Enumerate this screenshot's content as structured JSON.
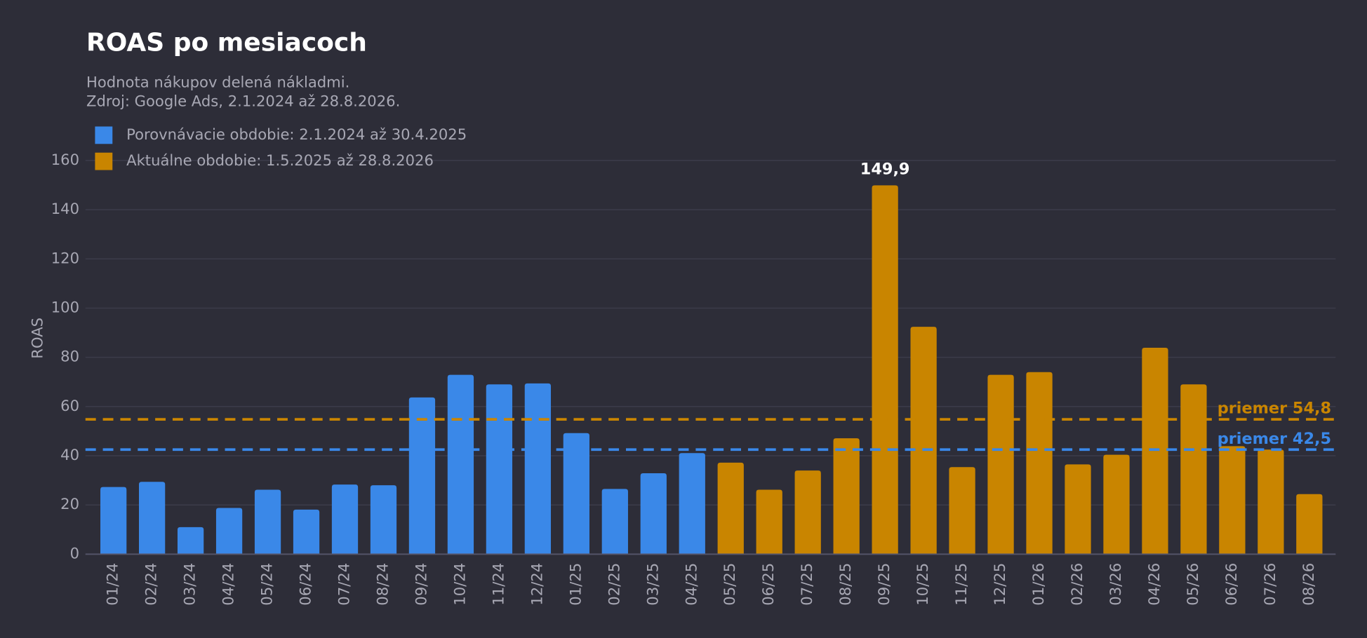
{
  "chart_data": {
    "type": "bar",
    "title": "ROAS po mesiacoch",
    "subtitle": [
      "Hodnota nákupov delená nákladmi.",
      "Zdroj: Google Ads, 2.1.2024 až 28.8.2026."
    ],
    "y_label": "ROAS",
    "categories": [
      "01/24",
      "02/24",
      "03/24",
      "04/24",
      "05/24",
      "06/24",
      "07/24",
      "08/24",
      "09/24",
      "10/24",
      "11/24",
      "12/24",
      "01/25",
      "02/25",
      "03/25",
      "04/25",
      "05/25",
      "06/25",
      "07/25",
      "08/25",
      "09/25",
      "10/25",
      "11/25",
      "12/25",
      "01/26",
      "02/26",
      "03/26",
      "04/26",
      "05/26",
      "06/26",
      "07/26",
      "08/26"
    ],
    "series": [
      {
        "name": "Porovnávacie obdobie: 2.1.2024 až 30.4.2025",
        "color": "#3a88e8",
        "values": [
          27.3,
          29.4,
          11.0,
          18.8,
          26.2,
          18.1,
          28.3,
          28.0,
          63.7,
          72.9,
          69.0,
          69.4,
          49.2,
          26.5,
          32.9,
          41.1,
          null,
          null,
          null,
          null,
          null,
          null,
          null,
          null,
          null,
          null,
          null,
          null,
          null,
          null,
          null,
          null
        ]
      },
      {
        "name": "Aktuálne obdobie: 1.5.2025 až 28.8.2026",
        "color": "#c98500",
        "values": [
          null,
          null,
          null,
          null,
          null,
          null,
          null,
          null,
          null,
          null,
          null,
          null,
          null,
          null,
          null,
          null,
          37.2,
          26.2,
          34.0,
          47.1,
          149.9,
          92.4,
          35.4,
          72.9,
          74.0,
          36.5,
          40.4,
          83.9,
          69.0,
          43.9,
          42.5,
          24.4
        ],
        "value_labels": [
          null,
          null,
          null,
          null,
          null,
          null,
          null,
          null,
          null,
          null,
          null,
          null,
          null,
          null,
          null,
          null,
          null,
          null,
          null,
          null,
          "149,9",
          null,
          null,
          null,
          null,
          null,
          null,
          null,
          null,
          null,
          null,
          null
        ]
      }
    ],
    "reference_lines": [
      {
        "label": "priemer 54,8",
        "value": 54.8,
        "color": "#c98500"
      },
      {
        "label": "priemer 42,5",
        "value": 42.5,
        "color": "#3a88e8"
      }
    ],
    "ylim": [
      0,
      160
    ],
    "yticks": [
      0,
      20,
      40,
      60,
      80,
      100,
      120,
      140,
      160
    ],
    "grid": true,
    "legend": "top-left"
  }
}
